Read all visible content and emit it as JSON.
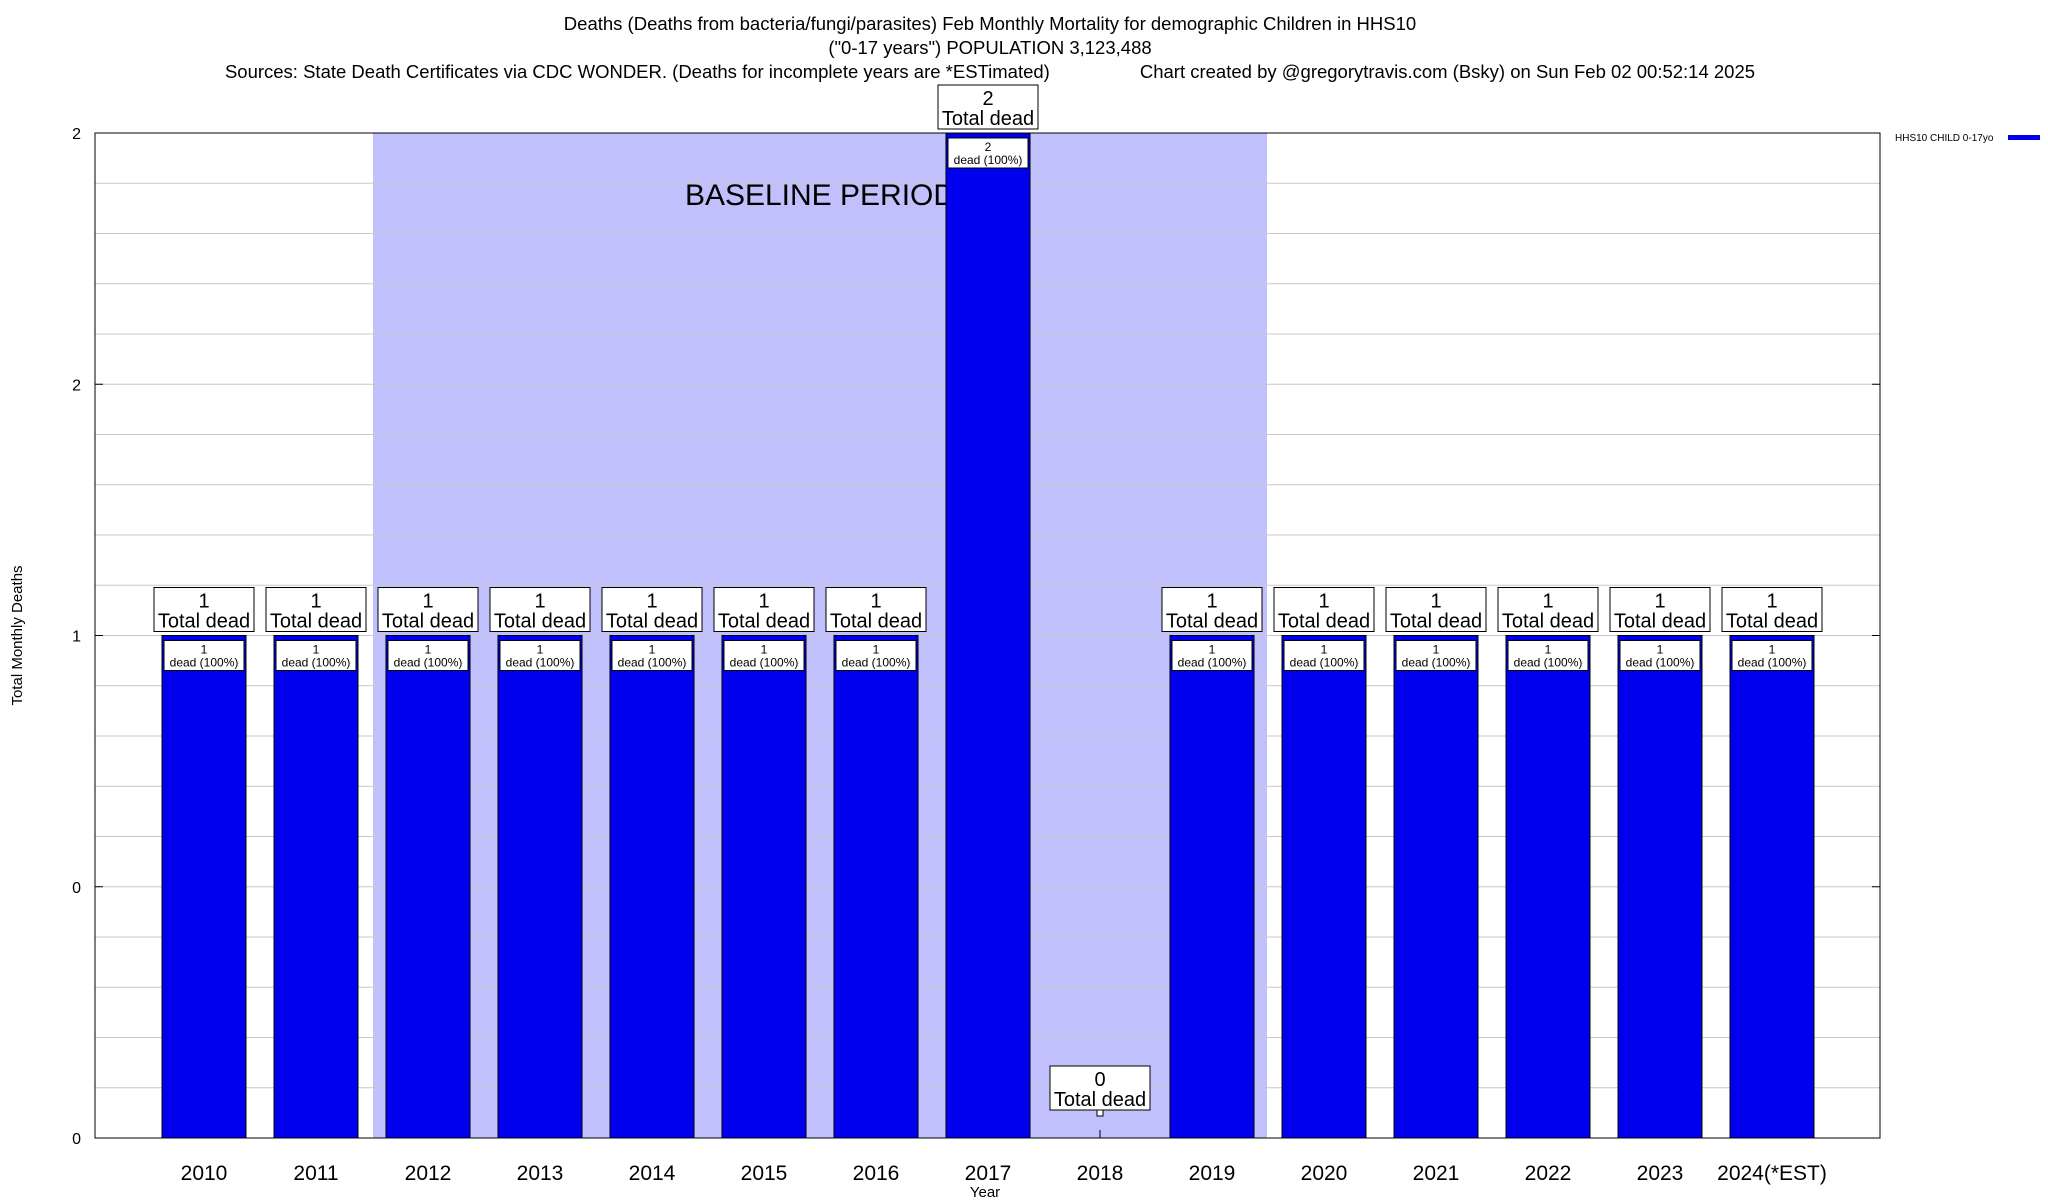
{
  "title": {
    "line1": "Deaths (Deaths from bacteria/fungi/parasites) Feb Monthly Mortality for demographic Children in HHS10",
    "line2": "(\"0-17 years\") POPULATION 3,123,488",
    "sources": "Sources: State Death Certificates via CDC WONDER. (Deaths for incomplete years are *ESTimated)",
    "credit": "Chart created by @gregorytravis.com (Bsky) on Sun Feb 02 00:52:14 2025"
  },
  "chart_data": {
    "type": "bar",
    "title": "Deaths (Deaths from bacteria/fungi/parasites) Feb Monthly Mortality for demographic Children in HHS10",
    "xlabel": "Year",
    "ylabel": "Total Monthly Deaths",
    "categories": [
      "2010",
      "2011",
      "2012",
      "2013",
      "2014",
      "2015",
      "2016",
      "2017",
      "2018",
      "2019",
      "2020",
      "2021",
      "2022",
      "2023",
      "2024(*EST)"
    ],
    "series": [
      {
        "name": "HHS10 CHILD 0-17yo",
        "color": "#0000ee",
        "values": [
          1,
          1,
          1,
          1,
          1,
          1,
          1,
          2,
          0,
          1,
          1,
          1,
          1,
          1,
          1
        ]
      }
    ],
    "ylim": [
      0,
      2
    ],
    "yticks": [
      {
        "value": 0,
        "label": "0"
      },
      {
        "value": 0.5,
        "label": "0"
      },
      {
        "value": 1,
        "label": "1"
      },
      {
        "value": 1.5,
        "label": "2"
      },
      {
        "value": 2,
        "label": "2"
      }
    ],
    "total_label_suffix": "Total dead",
    "inner_label_suffix": "dead (100%)",
    "baseline": {
      "label": "BASELINE PERIOD",
      "from": "2012",
      "to": "2019",
      "color": "#c0c0fc"
    },
    "grid": true,
    "legend_position": "top-right",
    "bar_color": "#0000ee"
  }
}
